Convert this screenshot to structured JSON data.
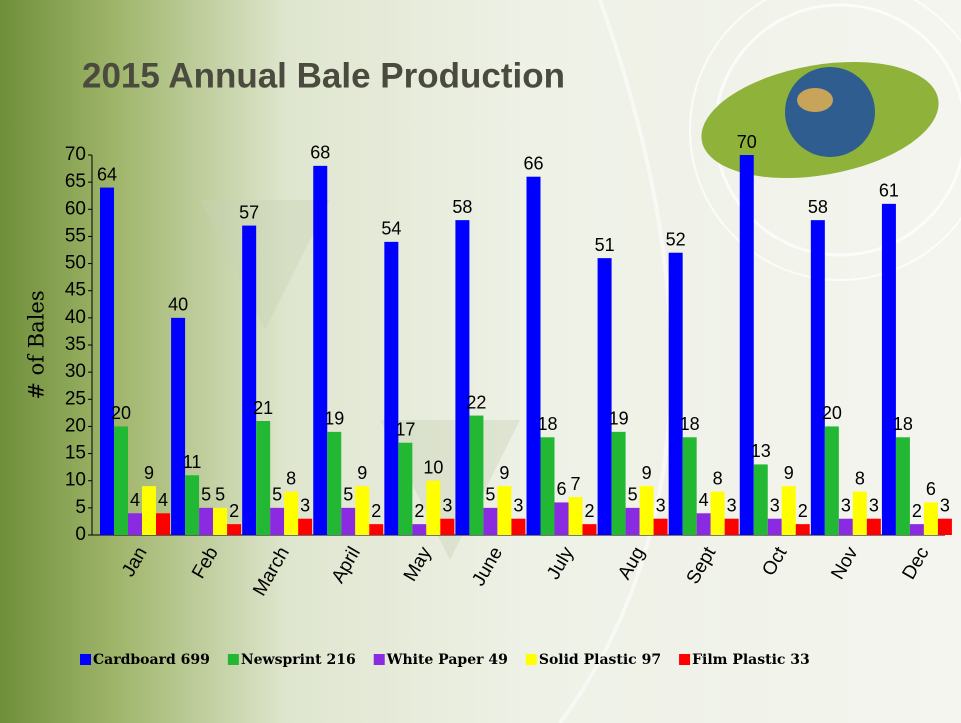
{
  "chart_data": {
    "type": "bar",
    "title": "2015 Annual Bale Production",
    "y_label": "# of Bales",
    "categories": [
      "Jan",
      "Feb",
      "March",
      "April",
      "May",
      "June",
      "July",
      "Aug",
      "Sept",
      "Oct",
      "Nov",
      "Dec"
    ],
    "series": [
      {
        "name": "Cardboard 699",
        "color": "#0000ff",
        "values": [
          64,
          40,
          57,
          68,
          54,
          58,
          66,
          51,
          52,
          70,
          58,
          61
        ]
      },
      {
        "name": "Newsprint 216",
        "color": "#22b833",
        "values": [
          20,
          11,
          21,
          19,
          17,
          22,
          18,
          19,
          18,
          13,
          20,
          18
        ]
      },
      {
        "name": "White Paper 49",
        "color": "#8a2be2",
        "values": [
          4,
          5,
          5,
          5,
          2,
          5,
          6,
          5,
          4,
          3,
          3,
          2
        ]
      },
      {
        "name": "Solid Plastic 97",
        "color": "#ffff00",
        "values": [
          9,
          5,
          8,
          9,
          10,
          9,
          7,
          9,
          8,
          9,
          8,
          6
        ]
      },
      {
        "name": "Film Plastic 33",
        "color": "#ff0000",
        "values": [
          4,
          2,
          3,
          2,
          3,
          3,
          2,
          3,
          3,
          2,
          3,
          3
        ]
      }
    ],
    "ylim": [
      0,
      70
    ],
    "yticks": [
      0,
      5,
      10,
      15,
      20,
      25,
      30,
      35,
      40,
      45,
      50,
      55,
      60,
      65,
      70
    ],
    "grid": false,
    "legend": "bottom"
  }
}
